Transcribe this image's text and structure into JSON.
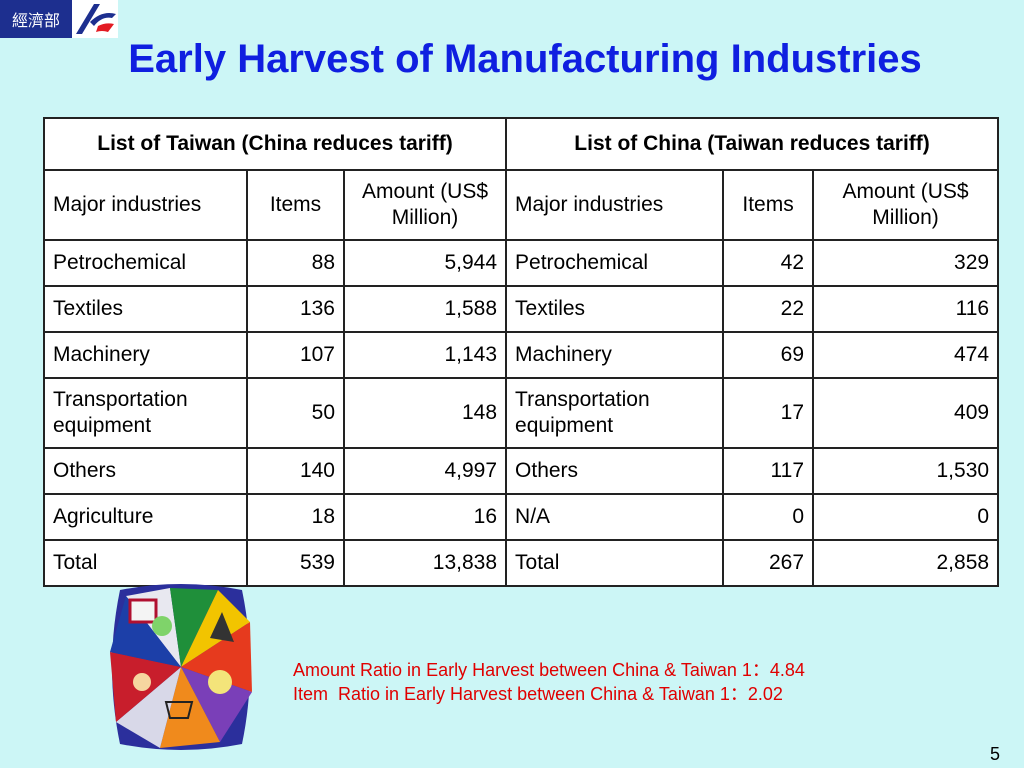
{
  "logo": {
    "text": "經濟部"
  },
  "title": "Early Harvest of Manufacturing Industries",
  "table": {
    "group_headers": [
      "List of Taiwan (China reduces tariff)",
      "List of China (Taiwan reduces tariff)"
    ],
    "sub_headers": [
      "Major industries",
      "Items",
      "Amount (US$ Million)",
      "Major industries",
      "Items",
      "Amount (US$ Million)"
    ],
    "rows": [
      [
        "Petrochemical",
        "88",
        "5,944",
        "Petrochemical",
        "42",
        "329"
      ],
      [
        "Textiles",
        "136",
        "1,588",
        "Textiles",
        "22",
        "116"
      ],
      [
        "Machinery",
        "107",
        "1,143",
        "Machinery",
        "69",
        "474"
      ],
      [
        "Transportation equipment",
        "50",
        "148",
        "Transportation equipment",
        "17",
        "409"
      ],
      [
        "Others",
        "140",
        "4,997",
        "Others",
        "117",
        "1,530"
      ],
      [
        "Agriculture",
        "18",
        "16",
        "N/A",
        "0",
        "0"
      ],
      [
        "Total",
        "539",
        "13,838",
        "Total",
        "267",
        "2,858"
      ]
    ]
  },
  "notes": [
    "Amount Ratio in Early Harvest between China & Taiwan 1：4.84",
    "Item  Ratio in Early Harvest between China & Taiwan 1：2.02"
  ],
  "page_number": "5",
  "colors": {
    "title": "#0f1fe0",
    "note": "#e00000",
    "background": "#ccf6f6",
    "logo": "#1d2f8f"
  }
}
